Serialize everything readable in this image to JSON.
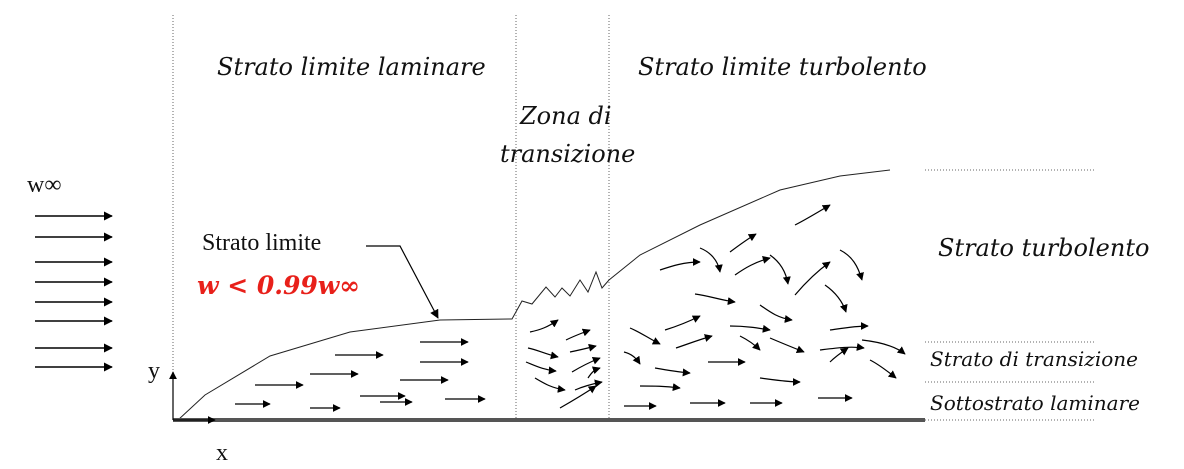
{
  "free_stream": {
    "label": "w∞"
  },
  "regions": {
    "laminar": "Strato limite laminare",
    "transition_1": "Zona di",
    "transition_2": "transizione",
    "turbulent": "Strato limite turbolento"
  },
  "boundary_layer": {
    "label": "Strato limite",
    "condition": "w < 0.99w∞"
  },
  "layers": {
    "turbulent": "Strato turbolento",
    "transition": "Strato di transizione",
    "sublayer": "Sottostrato laminare"
  },
  "axes": {
    "x": "x",
    "y": "y"
  }
}
